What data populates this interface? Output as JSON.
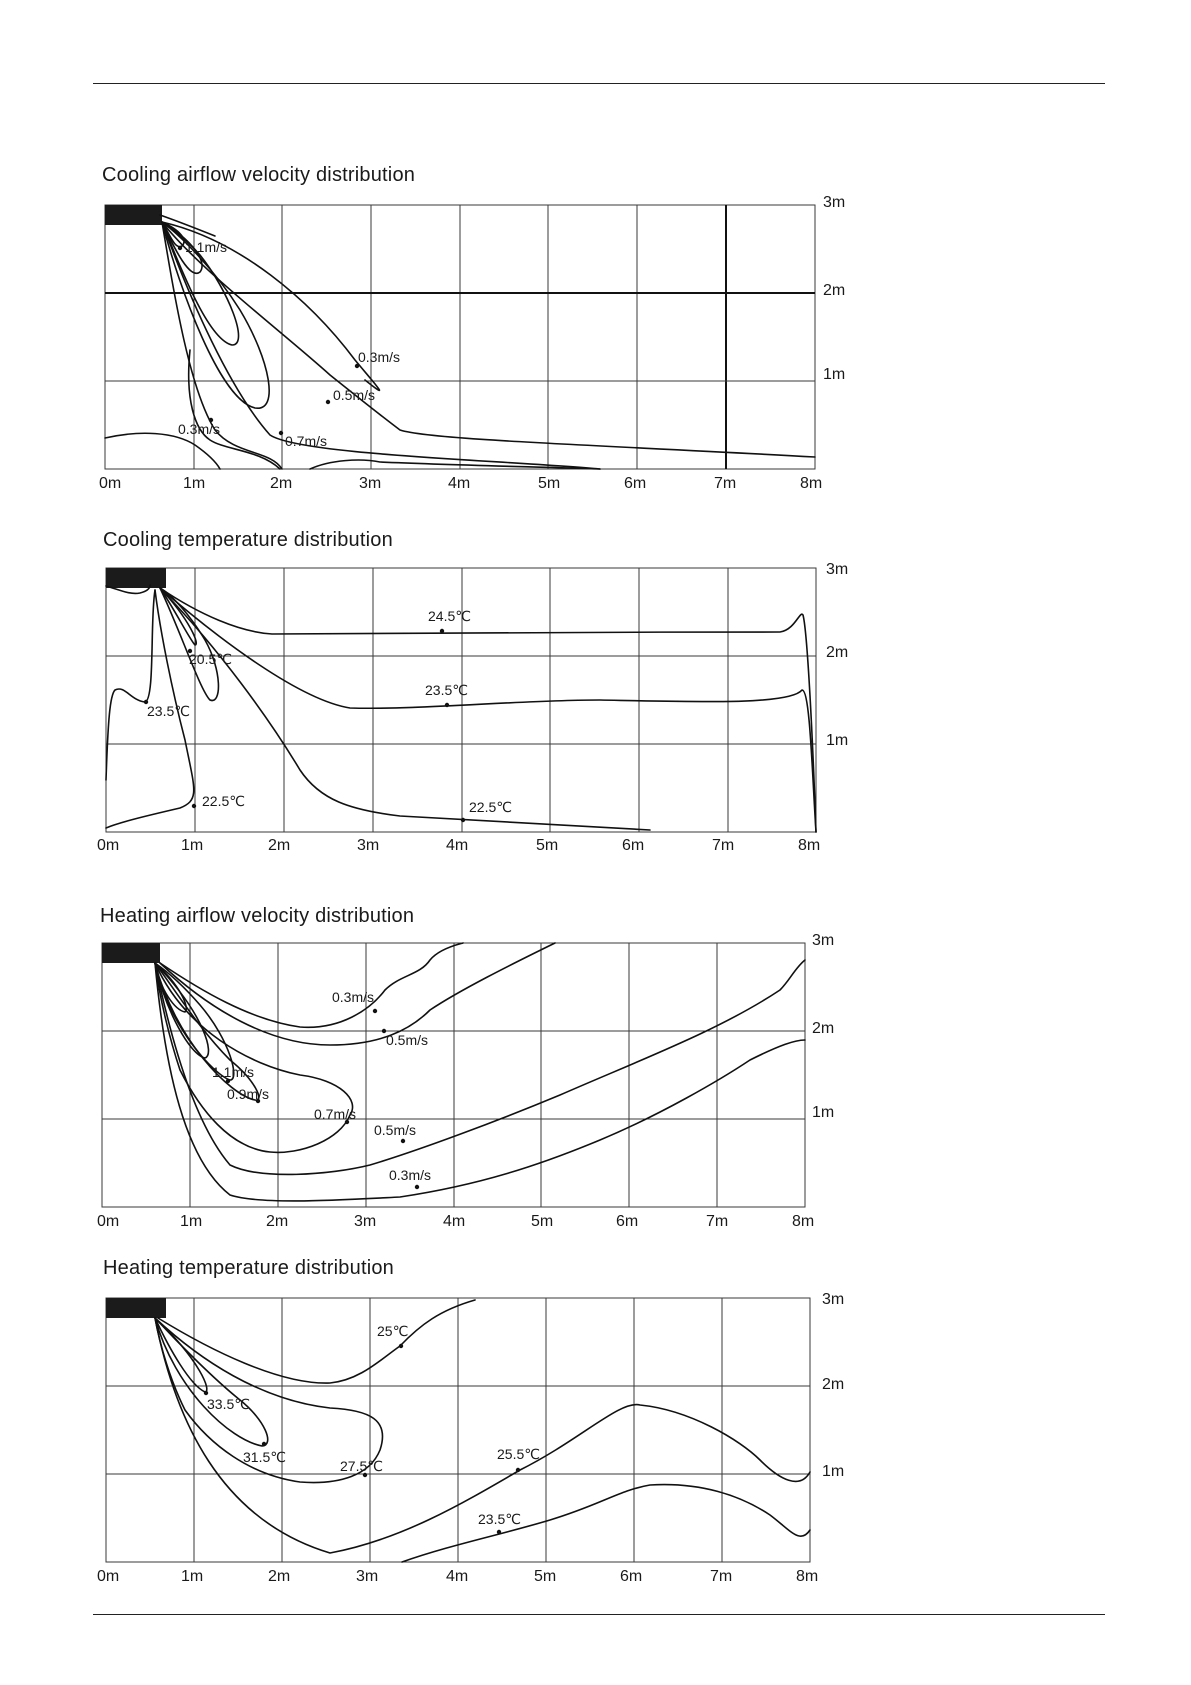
{
  "panels": [
    {
      "title": "Cooling airflow velocity distribution",
      "x_ticks": [
        "0m",
        "1m",
        "2m",
        "3m",
        "4m",
        "5m",
        "6m",
        "7m",
        "8m"
      ],
      "y_ticks": [
        "1m",
        "2m",
        "3m"
      ],
      "labels": [
        "1.1m/s",
        "0.3m/s",
        "0.5m/s",
        "0.3m/s",
        "0.7m/s"
      ]
    },
    {
      "title": "Cooling temperature distribution",
      "x_ticks": [
        "0m",
        "1m",
        "2m",
        "3m",
        "4m",
        "5m",
        "6m",
        "7m",
        "8m"
      ],
      "y_ticks": [
        "1m",
        "2m",
        "3m"
      ],
      "labels": [
        "24.5℃",
        "20.5℃",
        "23.5℃",
        "23.5℃",
        "22.5℃",
        "22.5℃"
      ]
    },
    {
      "title": "Heating airflow velocity distribution",
      "x_ticks": [
        "0m",
        "1m",
        "2m",
        "3m",
        "4m",
        "5m",
        "6m",
        "7m",
        "8m"
      ],
      "y_ticks": [
        "1m",
        "2m",
        "3m"
      ],
      "labels": [
        "0.3m/s",
        "0.5m/s",
        "1.1m/s",
        "0.9m/s",
        "0.7m/s",
        "0.5m/s",
        "0.3m/s"
      ]
    },
    {
      "title": "Heating temperature distribution",
      "x_ticks": [
        "0m",
        "1m",
        "2m",
        "3m",
        "4m",
        "5m",
        "6m",
        "7m",
        "8m"
      ],
      "y_ticks": [
        "1m",
        "2m",
        "3m"
      ],
      "labels": [
        "25℃",
        "33.5℃",
        "31.5℃",
        "27.5℃",
        "25.5℃",
        "23.5℃"
      ]
    }
  ]
}
